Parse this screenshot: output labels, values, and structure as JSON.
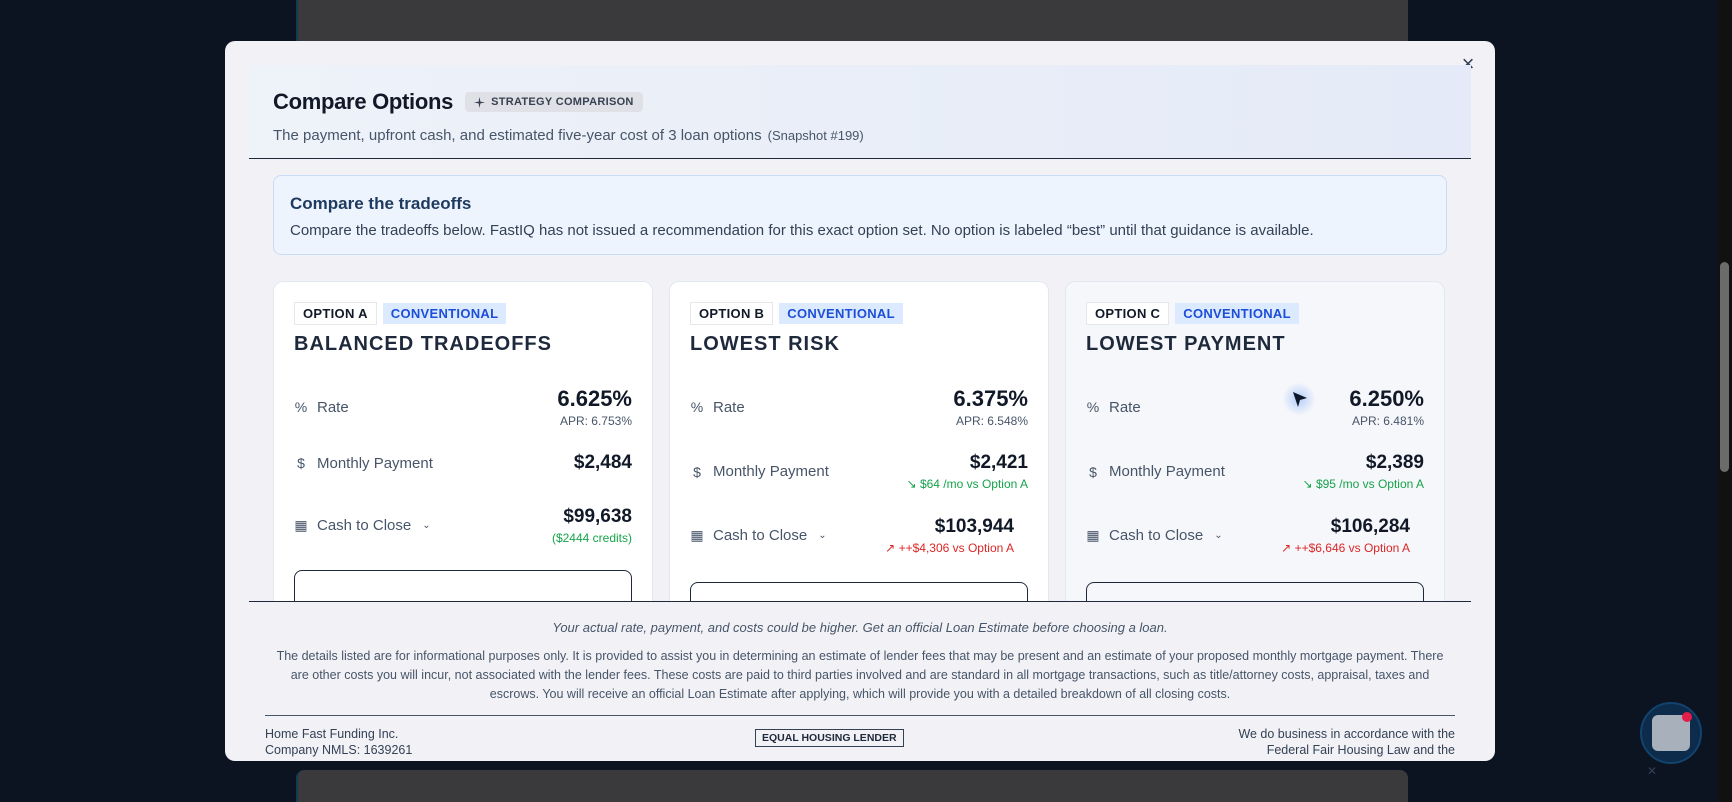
{
  "modal": {
    "title": "Compare Options",
    "badge": "STRATEGY COMPARISON",
    "subtitle": "The payment, upfront cash, and estimated five-year cost of 3 loan options",
    "snapshot": "(Snapshot #199)",
    "close_label": "×"
  },
  "notice": {
    "title": "Compare the tradeoffs",
    "text": "Compare the tradeoffs below. FastIQ has not issued a recommendation for this exact option set. No option is labeled “best” until that guidance is available."
  },
  "labels": {
    "rate": "Rate",
    "monthly_payment": "Monthly Payment",
    "cash_to_close": "Cash to Close"
  },
  "options": [
    {
      "option": "OPTION A",
      "type": "CONVENTIONAL",
      "title": "BALANCED TRADEOFFS",
      "rate": "6.625%",
      "apr": "APR: 6.753%",
      "payment": "$2,484",
      "cash": "$99,638",
      "cash_note": "($2444 credits)"
    },
    {
      "option": "OPTION B",
      "type": "CONVENTIONAL",
      "title": "LOWEST RISK",
      "rate": "6.375%",
      "apr": "APR: 6.548%",
      "payment": "$2,421",
      "payment_delta": "$64 /mo vs Option A",
      "cash": "$103,944",
      "cash_delta": "++$4,306 vs Option A"
    },
    {
      "option": "OPTION C",
      "type": "CONVENTIONAL",
      "title": "LOWEST PAYMENT",
      "rate": "6.250%",
      "apr": "APR: 6.481%",
      "payment": "$2,389",
      "payment_delta": "$95 /mo vs Option A",
      "cash": "$106,284",
      "cash_delta": "++$6,646 vs Option A"
    }
  ],
  "footer": {
    "italic": "Your actual rate, payment, and costs could be higher. Get an official Loan Estimate before choosing a loan.",
    "disclaimer": "The details listed are for informational purposes only. It is provided to assist you in determining an estimate of lender fees that may be present and an estimate of your proposed monthly mortgage payment. There are other costs you will incur, not associated with the lender fees. These costs are paid to third parties involved and are standard in all mortgage transactions, such as title/attorney costs, appraisal, taxes and escrows. You will receive an official Loan Estimate after applying, which will provide you with a detailed breakdown of all closing costs.",
    "company": "Home Fast Funding Inc.",
    "nmls": "Company NMLS: 1639261",
    "ehl": "EQUAL HOUSING LENDER",
    "fair_housing": "We do business in accordance with the Federal Fair Housing Law and the"
  },
  "icons": {
    "rate": "percent-icon",
    "payment": "dollar-icon",
    "cash": "calculator-icon",
    "badge": "sparkle-icon",
    "trend_down": "trend-down-icon",
    "trend_up": "trend-up-icon"
  },
  "colors": {
    "accent": "#1d4ed8",
    "positive": "#16a34a",
    "negative": "#dc2626"
  }
}
